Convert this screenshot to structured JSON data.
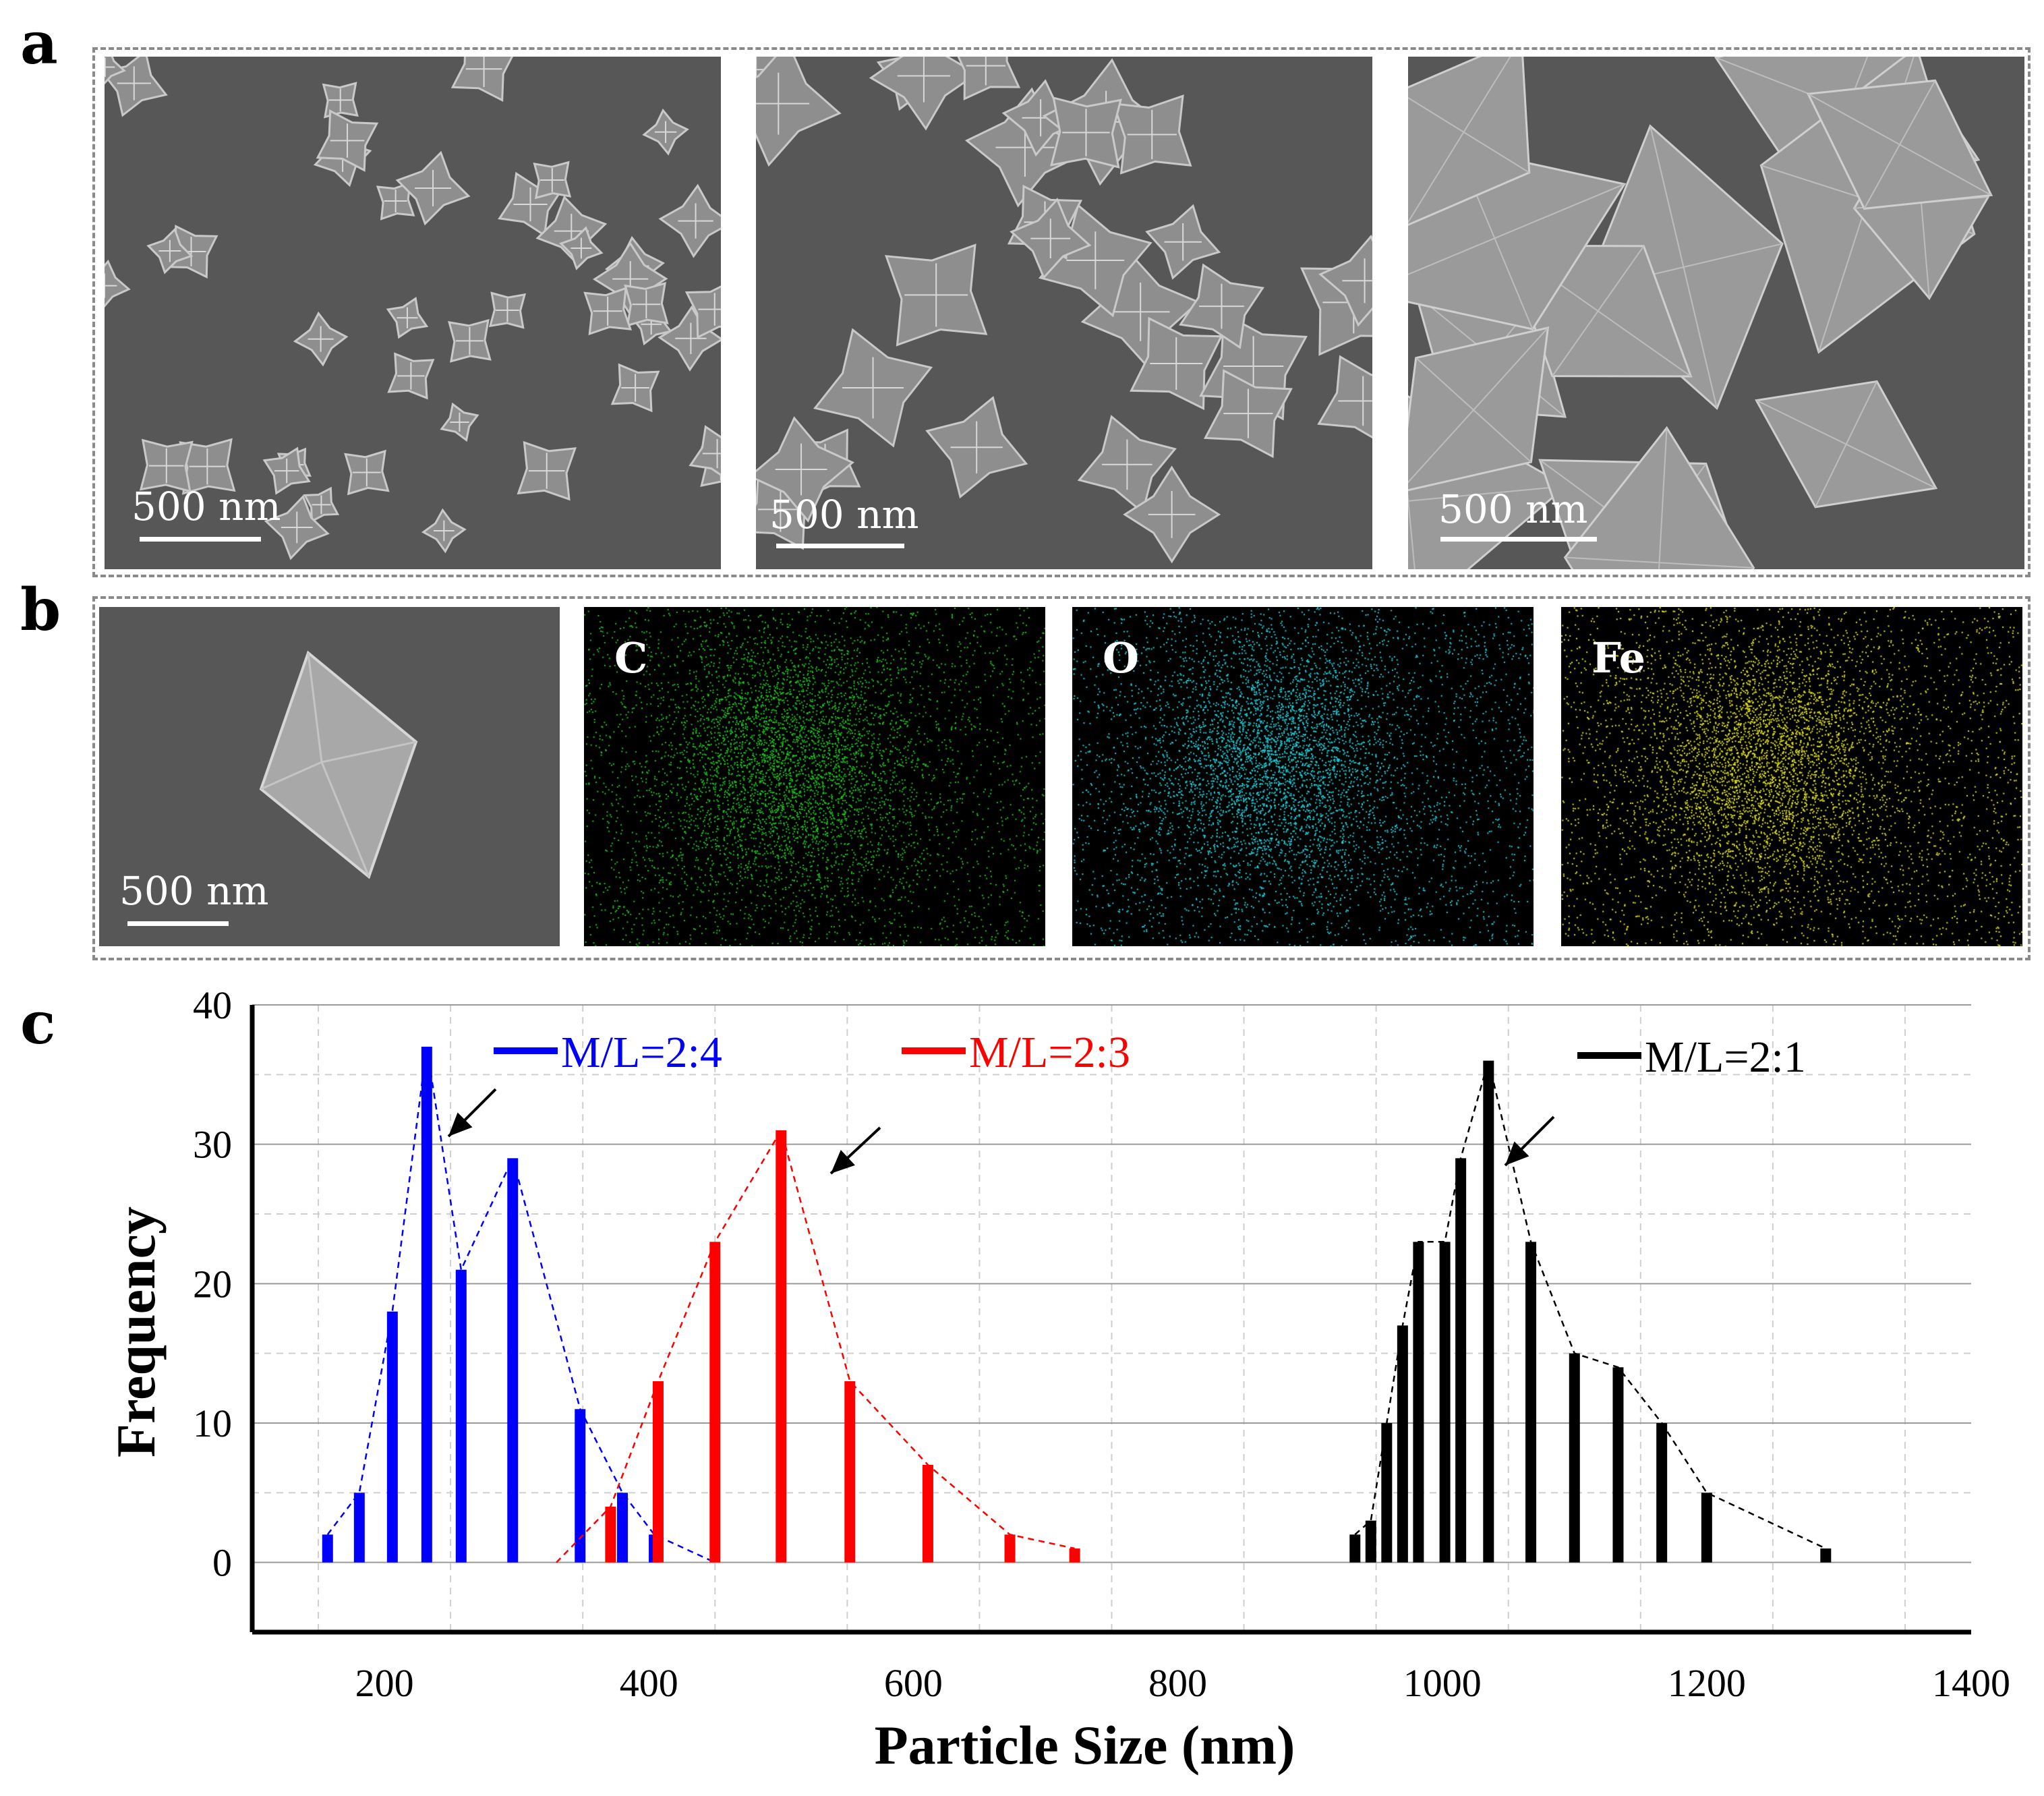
{
  "panels": {
    "a": {
      "letter": "a",
      "images": [
        {
          "scale_label": "500 nm",
          "variant": "small"
        },
        {
          "scale_label": "500 nm",
          "variant": "medium"
        },
        {
          "scale_label": "500 nm",
          "variant": "large"
        }
      ]
    },
    "b": {
      "letter": "b",
      "sem_scale_label": "500 nm",
      "maps": [
        {
          "element": "C",
          "color": "#22c522"
        },
        {
          "element": "O",
          "color": "#22d3de"
        },
        {
          "element": "Fe",
          "color": "#e6e622"
        }
      ]
    },
    "c": {
      "letter": "c"
    }
  },
  "chart_data": {
    "type": "bar",
    "xlabel": "Particle Size (nm)",
    "ylabel": "Frequency",
    "xlim": [
      100,
      1400
    ],
    "ylim": [
      -5,
      40
    ],
    "xticks": [
      200,
      400,
      600,
      800,
      1000,
      1200,
      1400
    ],
    "yticks": [
      0,
      10,
      20,
      30,
      40
    ],
    "grid": true,
    "legend_placement": "inline-top",
    "series": [
      {
        "name": "M/L=2:4",
        "color": "#0000ff",
        "points": [
          [
            157,
            2
          ],
          [
            181,
            5
          ],
          [
            206,
            18
          ],
          [
            232,
            37
          ],
          [
            258,
            21
          ],
          [
            297,
            29
          ],
          [
            348,
            11
          ],
          [
            380,
            5
          ],
          [
            404,
            2
          ]
        ],
        "trend": [
          [
            157,
            2
          ],
          [
            181,
            5
          ],
          [
            206,
            18
          ],
          [
            232,
            37
          ],
          [
            258,
            21
          ],
          [
            297,
            29
          ],
          [
            348,
            11
          ],
          [
            380,
            5
          ],
          [
            404,
            2
          ],
          [
            450,
            0
          ]
        ]
      },
      {
        "name": "M/L=2:3",
        "color": "#ff0000",
        "points": [
          [
            371,
            4
          ],
          [
            407,
            13
          ],
          [
            450,
            23
          ],
          [
            500,
            31
          ],
          [
            552,
            13
          ],
          [
            611,
            7
          ],
          [
            673,
            2
          ],
          [
            722,
            1
          ]
        ],
        "trend": [
          [
            330,
            0
          ],
          [
            371,
            4
          ],
          [
            407,
            13
          ],
          [
            450,
            23
          ],
          [
            500,
            31
          ],
          [
            552,
            13
          ],
          [
            611,
            7
          ],
          [
            673,
            2
          ],
          [
            722,
            1
          ]
        ]
      },
      {
        "name": "M/L=2:1",
        "color": "#000000",
        "points": [
          [
            934,
            2
          ],
          [
            946,
            3
          ],
          [
            958,
            10
          ],
          [
            970,
            17
          ],
          [
            982,
            23
          ],
          [
            1002,
            23
          ],
          [
            1014,
            29
          ],
          [
            1035,
            36
          ],
          [
            1067,
            23
          ],
          [
            1100,
            15
          ],
          [
            1133,
            14
          ],
          [
            1166,
            10
          ],
          [
            1200,
            5
          ],
          [
            1290,
            1
          ]
        ],
        "trend": [
          [
            934,
            2
          ],
          [
            946,
            3
          ],
          [
            958,
            10
          ],
          [
            970,
            17
          ],
          [
            982,
            23
          ],
          [
            1002,
            23
          ],
          [
            1014,
            29
          ],
          [
            1035,
            36
          ],
          [
            1067,
            23
          ],
          [
            1100,
            15
          ],
          [
            1133,
            14
          ],
          [
            1166,
            10
          ],
          [
            1200,
            5
          ],
          [
            1290,
            1
          ]
        ]
      }
    ]
  }
}
